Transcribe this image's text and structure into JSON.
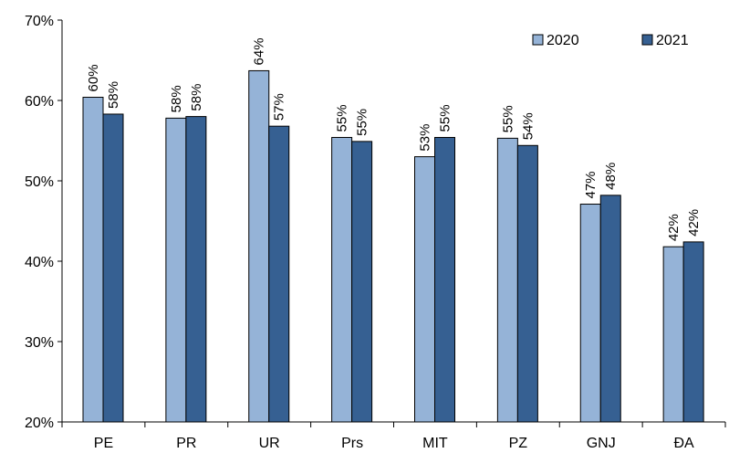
{
  "chart_data": {
    "type": "bar",
    "title": "",
    "xlabel": "",
    "ylabel": "",
    "categories": [
      "PE",
      "PR",
      "UR",
      "Prs",
      "MIT",
      "PZ",
      "GNJ",
      "ĐA"
    ],
    "series": [
      {
        "name": "2020",
        "color": "#95B3D7",
        "values": [
          60.4,
          57.8,
          63.7,
          55.4,
          53.0,
          55.3,
          47.1,
          41.8
        ],
        "labels": [
          "60%",
          "58%",
          "64%",
          "55%",
          "53%",
          "55%",
          "47%",
          "42%"
        ]
      },
      {
        "name": "2021",
        "color": "#366092",
        "values": [
          58.3,
          58.0,
          56.8,
          54.9,
          55.4,
          54.4,
          48.2,
          42.4
        ],
        "labels": [
          "58%",
          "58%",
          "57%",
          "55%",
          "55%",
          "54%",
          "48%",
          "42%"
        ]
      }
    ],
    "ylim": [
      20,
      70
    ],
    "yticks": [
      20,
      30,
      40,
      50,
      60,
      70
    ],
    "ytick_labels": [
      "20%",
      "30%",
      "40%",
      "50%",
      "60%",
      "70%"
    ],
    "grid": false,
    "legend_position": "top-right"
  }
}
